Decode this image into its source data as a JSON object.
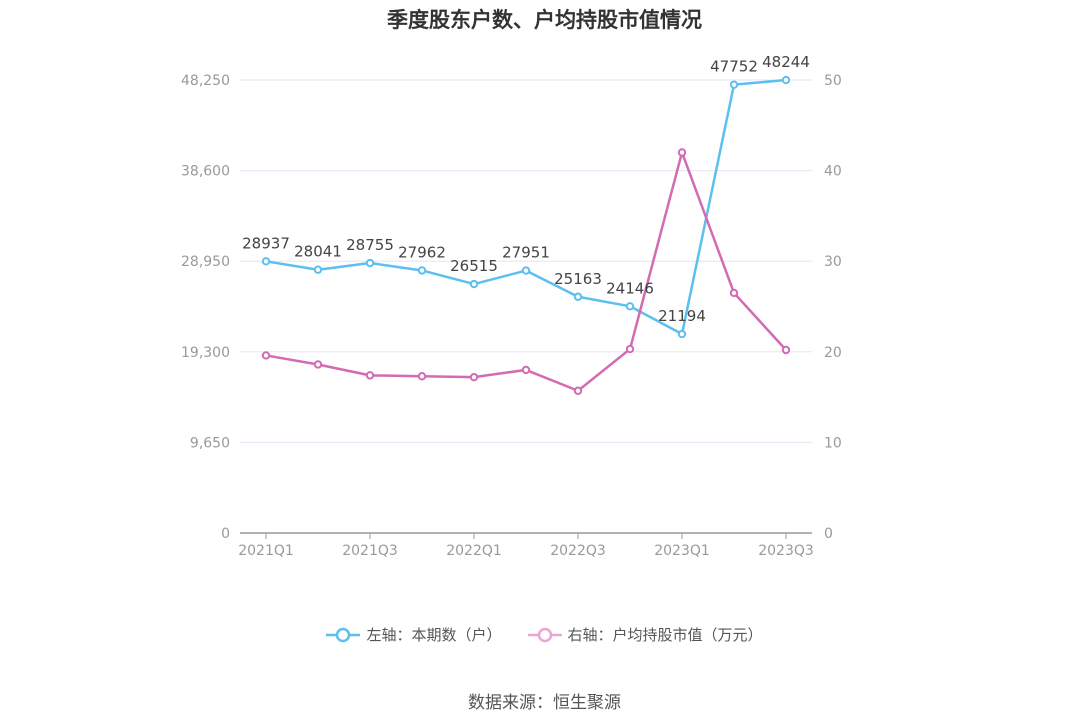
{
  "chart_data": {
    "type": "line",
    "title": "季度股东户数、户均持股市值情况",
    "categories": [
      "2021Q1",
      "2021Q2",
      "2021Q3",
      "2021Q4",
      "2022Q1",
      "2022Q2",
      "2022Q3",
      "2022Q4",
      "2023Q1",
      "2023Q2",
      "2023Q3"
    ],
    "x_tick_labels": [
      "2021Q1",
      "2021Q3",
      "2022Q1",
      "2022Q3",
      "2023Q1",
      "2023Q3"
    ],
    "left_axis": {
      "ylim": [
        0,
        48250
      ],
      "ticks": [
        "0",
        "9,650",
        "19,300",
        "28,950",
        "38,600",
        "48,250"
      ]
    },
    "right_axis": {
      "ylim": [
        0,
        50
      ],
      "ticks": [
        "0",
        "10",
        "20",
        "30",
        "40",
        "50"
      ]
    },
    "series": [
      {
        "name": "左轴：本期数（户）",
        "axis": "left",
        "color": "#5bc0ef",
        "values": [
          28937,
          28041,
          28755,
          27962,
          26515,
          27951,
          25163,
          24146,
          21194,
          47752,
          48244
        ],
        "labels": [
          "28937",
          "28041",
          "28755",
          "27962",
          "26515",
          "27951",
          "25163",
          "24146",
          "21194",
          "47752",
          "48244"
        ]
      },
      {
        "name": "右轴：户均持股市值（万元）",
        "axis": "right",
        "color": "#d36ab3",
        "values": [
          19.6,
          18.6,
          17.4,
          17.3,
          17.2,
          18.0,
          15.7,
          20.3,
          42.0,
          26.5,
          20.2
        ]
      }
    ],
    "grid": true,
    "legend_position": "bottom"
  },
  "source": "数据来源：恒生聚源"
}
